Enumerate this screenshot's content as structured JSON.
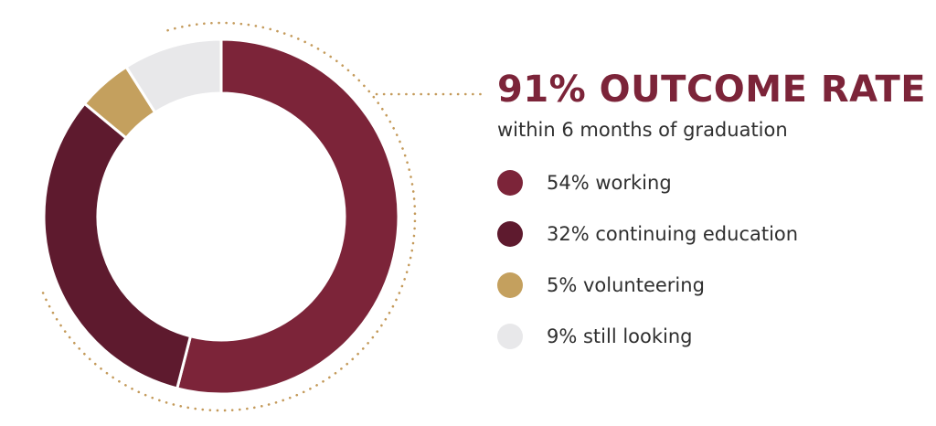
{
  "headline": "91% OUTCOME RATE",
  "subhead": "within 6 months of graduation",
  "colors": {
    "accent": "#7c2439",
    "dotted_ring": "#c49a5a"
  },
  "chart_data": {
    "type": "pie",
    "donut": true,
    "start_angle_deg": 0,
    "direction": "clockwise",
    "slices": [
      {
        "label": "54% working",
        "value": 54,
        "color": "#7c2439"
      },
      {
        "label": "32% continuing education",
        "value": 32,
        "color": "#5e1a2e"
      },
      {
        "label": "5% volunteering",
        "value": 5,
        "color": "#c4a05e"
      },
      {
        "label": "9% still looking",
        "value": 9,
        "color": "#e8e8ea"
      }
    ],
    "legend_position": "right"
  }
}
